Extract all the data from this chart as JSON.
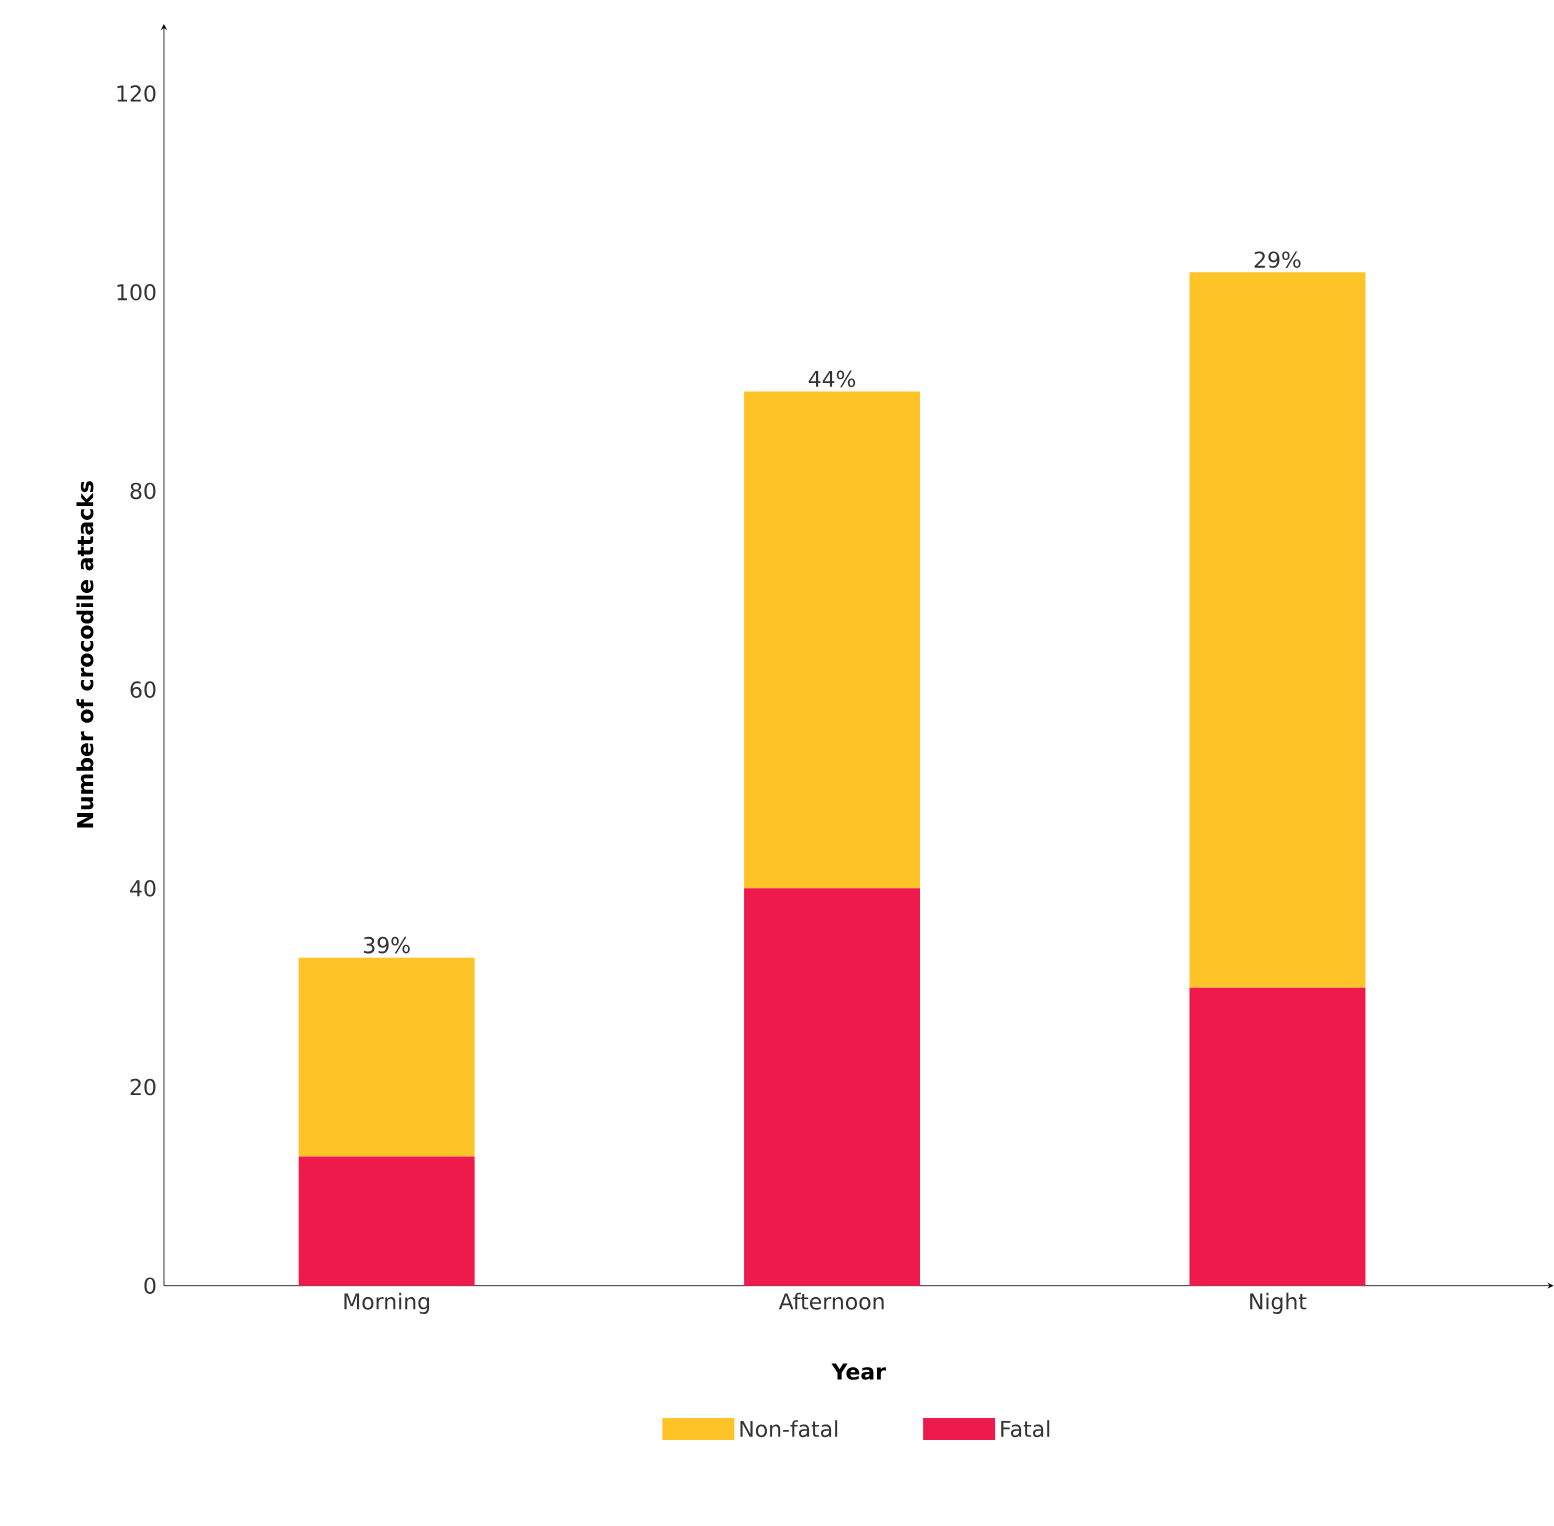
{
  "chart_data": {
    "type": "bar",
    "stacked": true,
    "categories": [
      "Morning",
      "Afternoon",
      "Night"
    ],
    "series": [
      {
        "name": "Fatal",
        "color": "#ee1a4b",
        "values": [
          13,
          40,
          30
        ]
      },
      {
        "name": "Non-fatal",
        "color": "#fdc327",
        "values": [
          20,
          50,
          72
        ]
      }
    ],
    "annotations": [
      {
        "text": "39%",
        "x": "Morning",
        "y": 33
      },
      {
        "text": "44%",
        "x": "Afternoon",
        "y": 90
      },
      {
        "text": "29%",
        "x": "Night",
        "y": 102
      }
    ],
    "xlabel": "Year",
    "ylabel": "Number of crocodile attacks",
    "ylim": [
      0,
      127
    ],
    "yticks": [
      0,
      20,
      40,
      60,
      80,
      100,
      120
    ],
    "grid": false,
    "legend": "bottom"
  }
}
